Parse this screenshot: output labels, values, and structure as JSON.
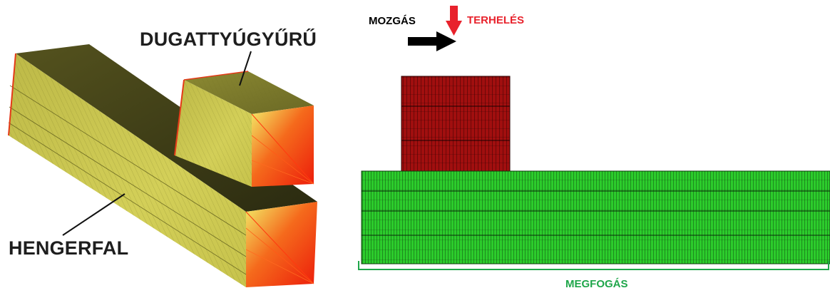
{
  "labels": {
    "piston_ring": "DUGATTYÚGYŰRŰ",
    "cylinder_wall": "HENGERFAL",
    "movement": "MOZGÁS",
    "load": "TERHELÉS",
    "fixture": "MEGFOGÁS"
  },
  "colors": {
    "block_top": "#3b3a16",
    "block_front": "#c9c64e",
    "block_side": "#ee2a0e",
    "ring_mesh": "#a10f0f",
    "wall_mesh": "#2ccc2c",
    "mesh_lines": "#0b0b0b",
    "load_arrow": "#e8222c",
    "move_arrow": "#000000",
    "fixture_bracket": "#1fa64a"
  },
  "icons": {
    "move_arrow": "arrow-right-icon",
    "load_arrow": "arrow-down-icon"
  }
}
